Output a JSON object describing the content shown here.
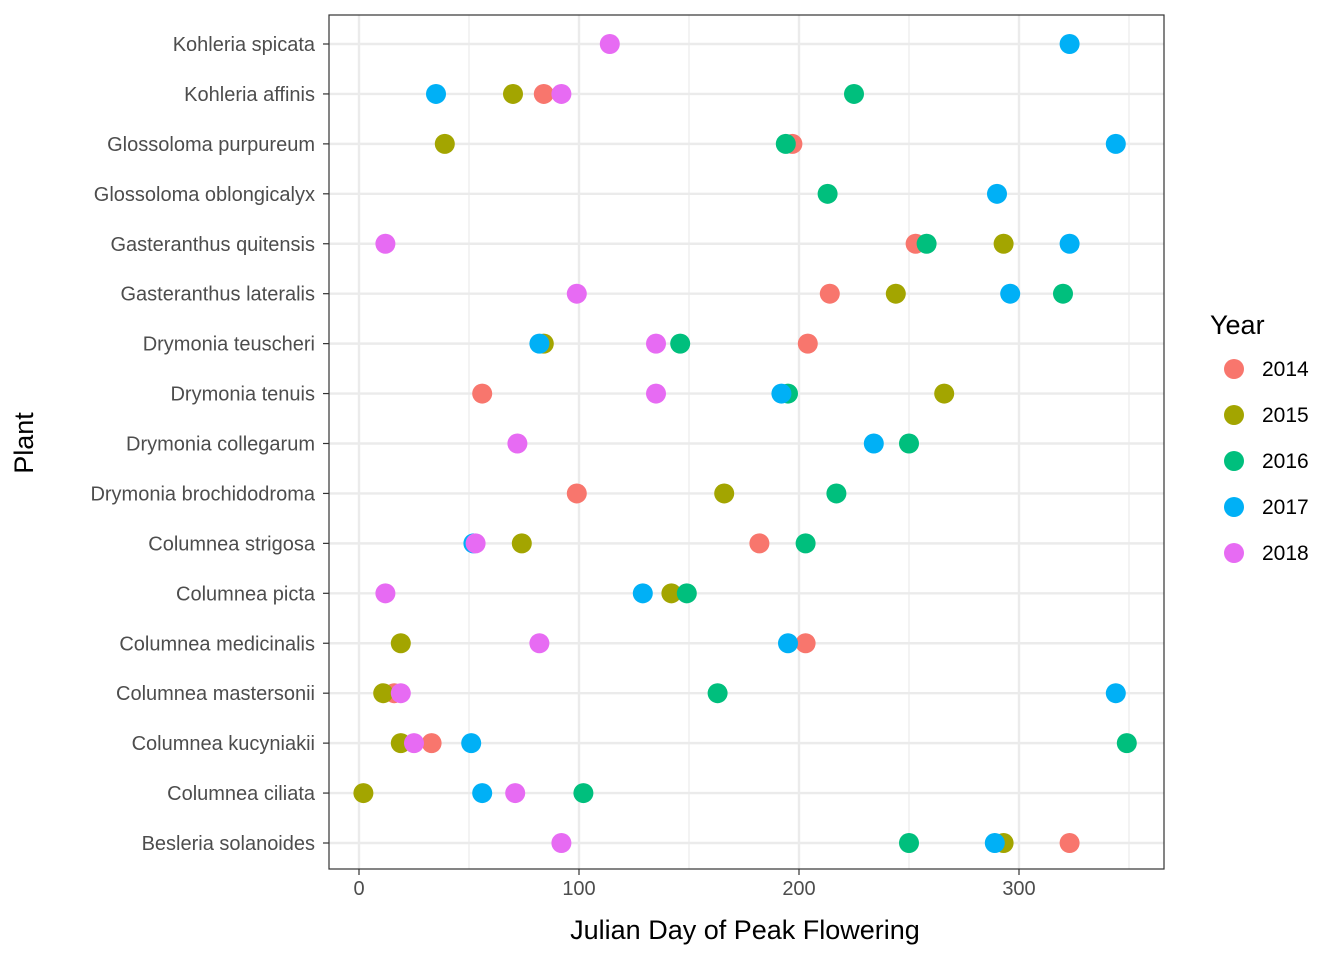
{
  "chart_data": {
    "type": "scatter",
    "title": "",
    "xlabel": "Julian Day of Peak Flowering",
    "ylabel": "Plant",
    "xlim": [
      -14,
      367
    ],
    "xticks": [
      0,
      100,
      200,
      300
    ],
    "x_minor_ticks": [
      50,
      150,
      250,
      350
    ],
    "grid": true,
    "legend": {
      "title": "Year",
      "position": "right"
    },
    "categories": [
      "Kohleria spicata",
      "Kohleria affinis",
      "Glossoloma purpureum",
      "Glossoloma oblongicalyx",
      "Gasteranthus quitensis",
      "Gasteranthus lateralis",
      "Drymonia teuscheri",
      "Drymonia tenuis",
      "Drymonia collegarum",
      "Drymonia brochidodroma",
      "Columnea strigosa",
      "Columnea picta",
      "Columnea medicinalis",
      "Columnea mastersonii",
      "Columnea kucyniakii",
      "Columnea ciliata",
      "Besleria solanoides"
    ],
    "series": [
      {
        "name": "2014",
        "color": "#F8766D",
        "points": [
          {
            "plant": "Kohleria affinis",
            "x": 84
          },
          {
            "plant": "Glossoloma purpureum",
            "x": 197
          },
          {
            "plant": "Gasteranthus quitensis",
            "x": 253
          },
          {
            "plant": "Gasteranthus lateralis",
            "x": 214
          },
          {
            "plant": "Drymonia teuscheri",
            "x": 204
          },
          {
            "plant": "Drymonia tenuis",
            "x": 56
          },
          {
            "plant": "Drymonia brochidodroma",
            "x": 99
          },
          {
            "plant": "Columnea strigosa",
            "x": 182
          },
          {
            "plant": "Columnea medicinalis",
            "x": 203
          },
          {
            "plant": "Columnea mastersonii",
            "x": 16
          },
          {
            "plant": "Columnea kucyniakii",
            "x": 33
          },
          {
            "plant": "Besleria solanoides",
            "x": 323
          }
        ]
      },
      {
        "name": "2015",
        "color": "#A3A500",
        "points": [
          {
            "plant": "Kohleria affinis",
            "x": 70
          },
          {
            "plant": "Glossoloma purpureum",
            "x": 39
          },
          {
            "plant": "Gasteranthus quitensis",
            "x": 293
          },
          {
            "plant": "Gasteranthus lateralis",
            "x": 244
          },
          {
            "plant": "Drymonia teuscheri",
            "x": 84
          },
          {
            "plant": "Drymonia tenuis",
            "x": 266
          },
          {
            "plant": "Drymonia brochidodroma",
            "x": 166
          },
          {
            "plant": "Columnea strigosa",
            "x": 74
          },
          {
            "plant": "Columnea picta",
            "x": 142
          },
          {
            "plant": "Columnea medicinalis",
            "x": 19
          },
          {
            "plant": "Columnea mastersonii",
            "x": 11
          },
          {
            "plant": "Columnea kucyniakii",
            "x": 19
          },
          {
            "plant": "Columnea ciliata",
            "x": 2
          },
          {
            "plant": "Besleria solanoides",
            "x": 293
          }
        ]
      },
      {
        "name": "2016",
        "color": "#00BF7D",
        "points": [
          {
            "plant": "Kohleria affinis",
            "x": 225
          },
          {
            "plant": "Glossoloma purpureum",
            "x": 194
          },
          {
            "plant": "Glossoloma oblongicalyx",
            "x": 213
          },
          {
            "plant": "Gasteranthus quitensis",
            "x": 258
          },
          {
            "plant": "Gasteranthus lateralis",
            "x": 320
          },
          {
            "plant": "Drymonia teuscheri",
            "x": 146
          },
          {
            "plant": "Drymonia tenuis",
            "x": 195
          },
          {
            "plant": "Drymonia collegarum",
            "x": 250
          },
          {
            "plant": "Drymonia brochidodroma",
            "x": 217
          },
          {
            "plant": "Columnea strigosa",
            "x": 203
          },
          {
            "plant": "Columnea picta",
            "x": 149
          },
          {
            "plant": "Columnea mastersonii",
            "x": 163
          },
          {
            "plant": "Columnea kucyniakii",
            "x": 349
          },
          {
            "plant": "Columnea ciliata",
            "x": 102
          },
          {
            "plant": "Besleria solanoides",
            "x": 250
          }
        ]
      },
      {
        "name": "2017",
        "color": "#00B0F6",
        "points": [
          {
            "plant": "Kohleria spicata",
            "x": 323
          },
          {
            "plant": "Kohleria affinis",
            "x": 35
          },
          {
            "plant": "Glossoloma purpureum",
            "x": 344
          },
          {
            "plant": "Glossoloma oblongicalyx",
            "x": 290
          },
          {
            "plant": "Gasteranthus quitensis",
            "x": 323
          },
          {
            "plant": "Gasteranthus lateralis",
            "x": 296
          },
          {
            "plant": "Drymonia teuscheri",
            "x": 82
          },
          {
            "plant": "Drymonia tenuis",
            "x": 192
          },
          {
            "plant": "Drymonia collegarum",
            "x": 234
          },
          {
            "plant": "Columnea strigosa",
            "x": 52
          },
          {
            "plant": "Columnea picta",
            "x": 129
          },
          {
            "plant": "Columnea medicinalis",
            "x": 195
          },
          {
            "plant": "Columnea mastersonii",
            "x": 344
          },
          {
            "plant": "Columnea kucyniakii",
            "x": 51
          },
          {
            "plant": "Columnea ciliata",
            "x": 56
          },
          {
            "plant": "Besleria solanoides",
            "x": 289
          }
        ]
      },
      {
        "name": "2018",
        "color": "#E76BF3",
        "points": [
          {
            "plant": "Kohleria spicata",
            "x": 114
          },
          {
            "plant": "Kohleria affinis",
            "x": 92
          },
          {
            "plant": "Gasteranthus quitensis",
            "x": 12
          },
          {
            "plant": "Gasteranthus lateralis",
            "x": 99
          },
          {
            "plant": "Drymonia teuscheri",
            "x": 135
          },
          {
            "plant": "Drymonia tenuis",
            "x": 135
          },
          {
            "plant": "Drymonia collegarum",
            "x": 72
          },
          {
            "plant": "Columnea strigosa",
            "x": 53
          },
          {
            "plant": "Columnea picta",
            "x": 12
          },
          {
            "plant": "Columnea medicinalis",
            "x": 82
          },
          {
            "plant": "Columnea mastersonii",
            "x": 19
          },
          {
            "plant": "Columnea kucyniakii",
            "x": 25
          },
          {
            "plant": "Columnea ciliata",
            "x": 71
          },
          {
            "plant": "Besleria solanoides",
            "x": 92
          }
        ]
      }
    ]
  }
}
